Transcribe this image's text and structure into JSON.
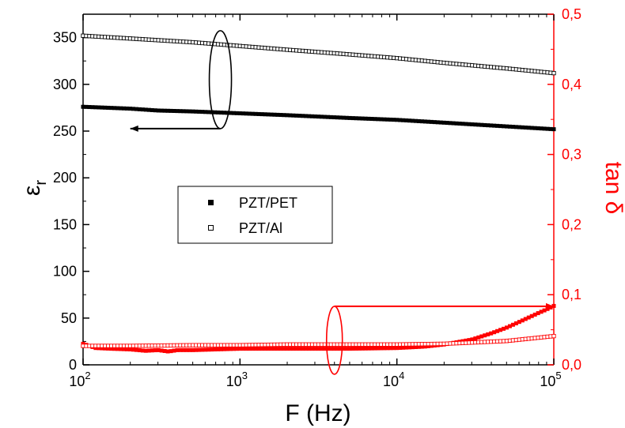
{
  "chart_data": {
    "type": "scatter",
    "x_scale": "log",
    "xlim": [
      100,
      100000
    ],
    "ylim_left": [
      0,
      375
    ],
    "ylim_right": [
      0,
      0.5
    ],
    "xlabel": "F (Hz)",
    "ylabel_left": {
      "main": "ε",
      "sub": "r"
    },
    "ylabel_right": "tan δ",
    "x_ticks": [
      {
        "value": 100,
        "base": "10",
        "exp": "2"
      },
      {
        "value": 1000,
        "base": "10",
        "exp": "3"
      },
      {
        "value": 10000,
        "base": "10",
        "exp": "4"
      },
      {
        "value": 100000,
        "base": "10",
        "exp": "5"
      }
    ],
    "y_left_ticks": [
      {
        "value": 0,
        "label": "0"
      },
      {
        "value": 50,
        "label": "50"
      },
      {
        "value": 100,
        "label": "100"
      },
      {
        "value": 150,
        "label": "150"
      },
      {
        "value": 200,
        "label": "200"
      },
      {
        "value": 250,
        "label": "250"
      },
      {
        "value": 300,
        "label": "300"
      },
      {
        "value": 350,
        "label": "350"
      }
    ],
    "y_right_ticks": [
      {
        "value": 0.0,
        "label": "0,0"
      },
      {
        "value": 0.1,
        "label": "0,1"
      },
      {
        "value": 0.2,
        "label": "0,2"
      },
      {
        "value": 0.3,
        "label": "0,3"
      },
      {
        "value": 0.4,
        "label": "0,4"
      },
      {
        "value": 0.5,
        "label": "0,5"
      }
    ],
    "legend": {
      "placement": "center-left",
      "entries": [
        {
          "label": "PZT/PET",
          "marker": "filled-square"
        },
        {
          "label": "PZT/Al",
          "marker": "open-square"
        }
      ]
    },
    "colors": {
      "left_axis": "#000000",
      "right_axis": "#ff0000",
      "left_series": "#000000",
      "right_series": "#ff0000"
    },
    "series": [
      {
        "axis": "left",
        "marker": "open-square",
        "color": "#000000",
        "x": [
          100,
          200,
          500,
          1000,
          2000,
          5000,
          10000,
          20000,
          50000,
          100000
        ],
        "y": [
          352,
          349,
          345,
          341,
          337,
          332,
          328,
          323,
          317,
          312
        ]
      },
      {
        "axis": "left",
        "marker": "filled-square",
        "color": "#000000",
        "x": [
          100,
          200,
          300,
          500,
          1000,
          2000,
          5000,
          10000,
          20000,
          50000,
          100000
        ],
        "y": [
          276,
          274,
          272,
          271,
          269,
          267,
          264,
          262,
          259,
          255,
          252
        ]
      },
      {
        "axis": "right",
        "marker": "filled-square",
        "color": "#ff0000",
        "x": [
          100,
          120,
          150,
          200,
          250,
          300,
          350,
          400,
          500,
          700,
          1000,
          2000,
          5000,
          10000,
          15000,
          20000,
          30000,
          40000,
          50000,
          60000,
          70000,
          80000,
          90000,
          100000
        ],
        "y": [
          0.03,
          0.024,
          0.023,
          0.022,
          0.02,
          0.021,
          0.019,
          0.021,
          0.021,
          0.022,
          0.023,
          0.023,
          0.023,
          0.024,
          0.026,
          0.029,
          0.036,
          0.045,
          0.053,
          0.061,
          0.068,
          0.074,
          0.079,
          0.084
        ]
      },
      {
        "axis": "right",
        "marker": "open-square",
        "color": "#ff0000",
        "x": [
          100,
          200,
          500,
          1000,
          2000,
          5000,
          10000,
          20000,
          50000,
          100000
        ],
        "y": [
          0.027,
          0.027,
          0.028,
          0.028,
          0.029,
          0.029,
          0.029,
          0.03,
          0.034,
          0.041
        ]
      }
    ],
    "annotations": [
      {
        "type": "ellipse-arrow",
        "target": "left",
        "x": 750,
        "y_left": 305,
        "arrow_to_x": 200
      },
      {
        "type": "ellipse-arrow",
        "target": "right",
        "x": 4000,
        "y_right": 0.035,
        "arrow_to_x": 100000
      }
    ]
  }
}
